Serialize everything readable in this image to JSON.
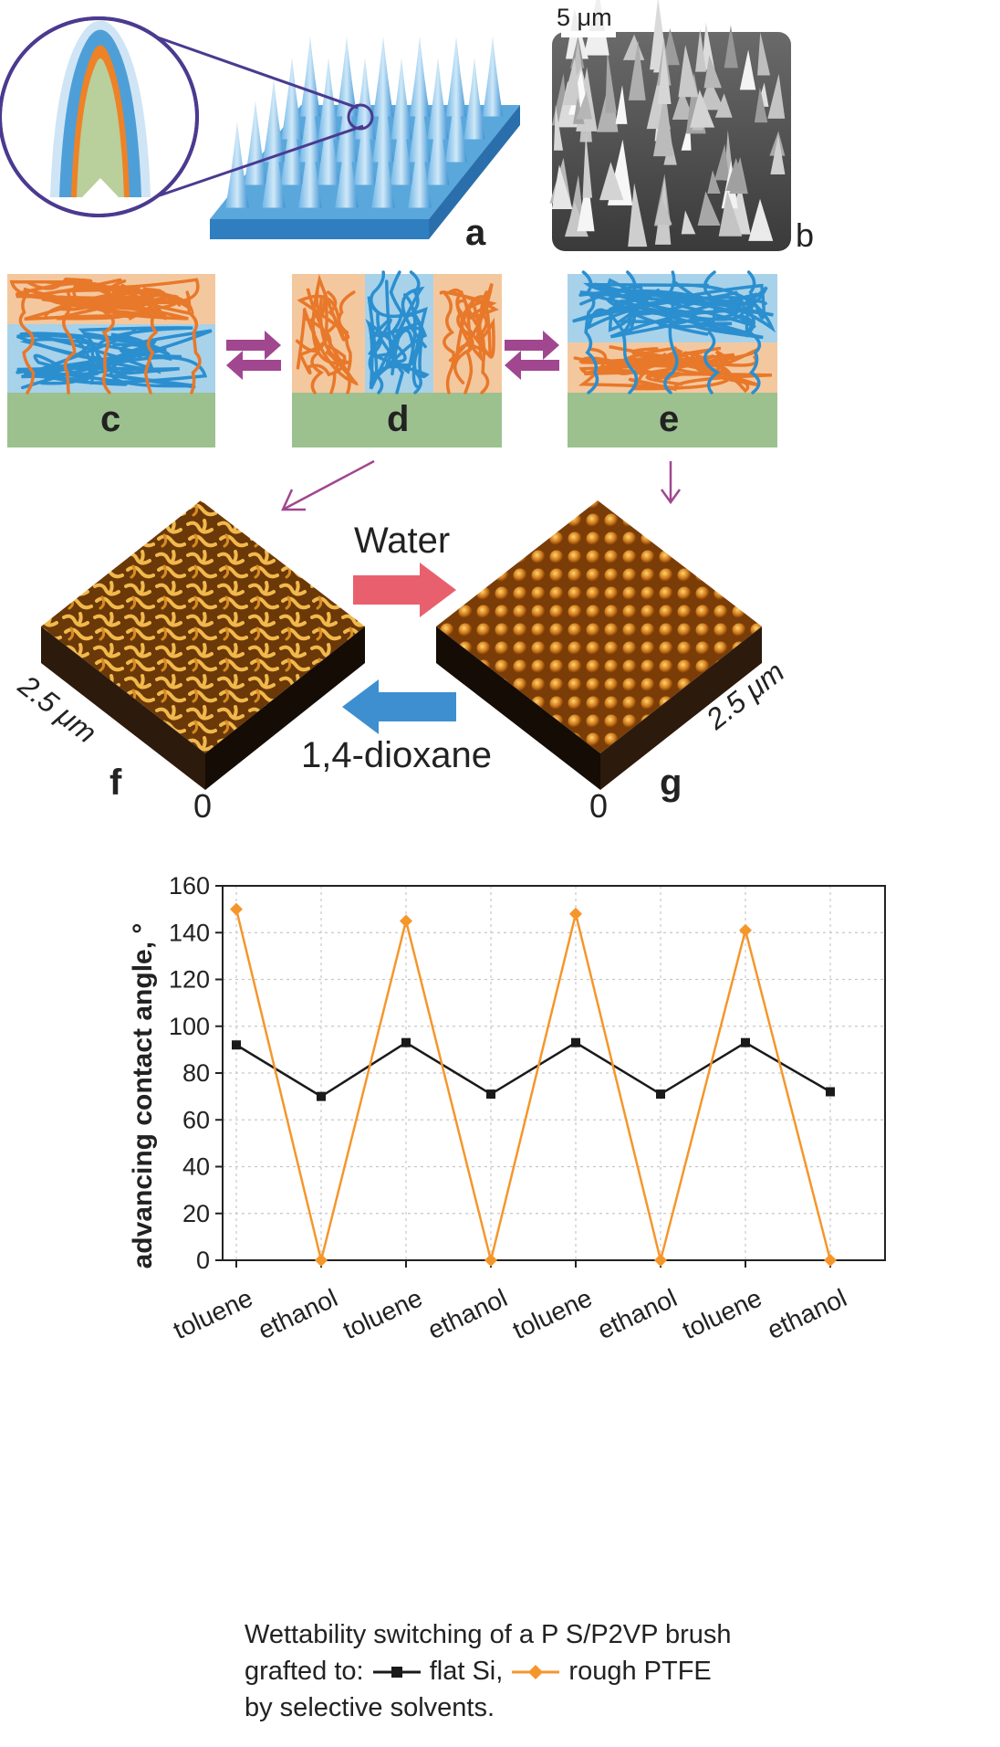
{
  "panels": {
    "a": "a",
    "b": "b",
    "c": "c",
    "d": "d",
    "e": "e",
    "f": "f",
    "g": "g"
  },
  "sem": {
    "scale_bar_label": "5 μm"
  },
  "afm": {
    "arrow_top_label": "Water",
    "arrow_bottom_label": "1,4-dioxane",
    "f_size_label": "2.5 μm",
    "g_size_label": "2.5 μm",
    "f_origin_label": "0",
    "g_origin_label": "0"
  },
  "colors": {
    "orange_chain": "#e8782a",
    "blue_chain": "#2b8fcf",
    "substrate": "#9cc18f",
    "orange_bg": "#f4c89f",
    "blue_bg": "#a7d2ea",
    "flat_si": "#1a1a1a",
    "rough_ptfe": "#f5962b",
    "water_arrow": "#e8606e",
    "dioxane_arrow": "#3d8fd0",
    "equilibrium_arrow": "#a0478f"
  },
  "chart_data": {
    "type": "line",
    "categories": [
      "toluene",
      "ethanol",
      "toluene",
      "ethanol",
      "toluene",
      "ethanol",
      "toluene",
      "ethanol"
    ],
    "ylabel": "advancing contact angle, °",
    "ylim": [
      0,
      160
    ],
    "yticks": [
      0,
      20,
      40,
      60,
      80,
      100,
      120,
      140,
      160
    ],
    "grid": true,
    "series": [
      {
        "name": "flat Si",
        "marker": "square",
        "color": "#1a1a1a",
        "values": [
          92,
          70,
          93,
          71,
          93,
          71,
          93,
          72
        ]
      },
      {
        "name": "rough PTFE",
        "marker": "diamond",
        "color": "#f5962b",
        "values": [
          150,
          0,
          145,
          0,
          148,
          0,
          141,
          0
        ]
      }
    ]
  },
  "caption": {
    "line1": "Wettability switching of a P S/P2VP brush",
    "line2_prefix": "grafted to: ",
    "line2_series1": " flat Si, ",
    "line2_series2": " rough PTFE",
    "line3": "by selective solvents."
  }
}
